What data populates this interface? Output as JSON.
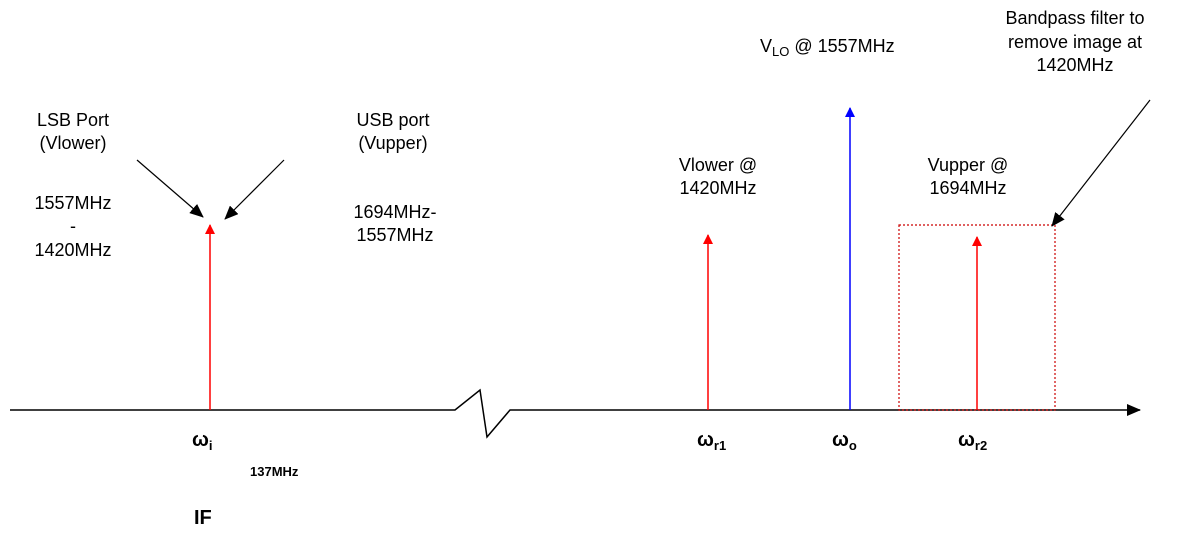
{
  "labels": {
    "lsb_port": [
      "LSB Port",
      "(Vlower)"
    ],
    "lsb_freq": [
      "1557MHz",
      "-",
      "1420MHz"
    ],
    "usb_port": [
      "USB port",
      "(Vupper)"
    ],
    "usb_freq": [
      "1694MHz-",
      "1557MHz"
    ],
    "vlower": [
      "Vlower @",
      "1420MHz"
    ],
    "vlo": {
      "base": "V",
      "sub": "LO",
      "rest": " @ 1557MHz"
    },
    "vupper": [
      "Vupper @",
      "1694MHz"
    ],
    "filter": [
      "Bandpass filter to",
      "remove image at",
      "1420MHz"
    ],
    "omega_i": {
      "base": "ω",
      "sub": "i"
    },
    "if_freq": "137MHz",
    "if": "IF",
    "omega_r1": {
      "base": "ω",
      "sub": "r1"
    },
    "omega_o": {
      "base": "ω",
      "sub": "o"
    },
    "omega_r2": {
      "base": "ω",
      "sub": "r2"
    }
  }
}
